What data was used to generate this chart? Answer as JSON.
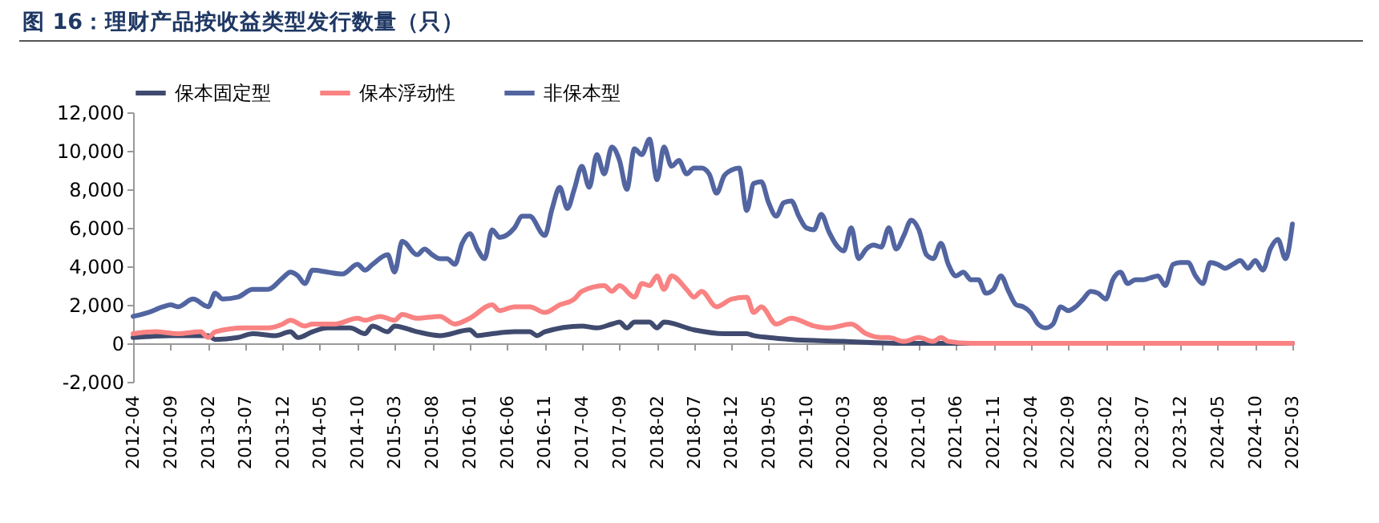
{
  "chart_data": {
    "type": "line",
    "title": "图 16：理财产品按收益类型发行数量（只）",
    "legend": "top",
    "line_style": "solid",
    "marker": "none",
    "xlim": [
      "2012-04",
      "2025-03"
    ],
    "xticks": [
      "2012-04",
      "2012-09",
      "2013-02",
      "2013-07",
      "2013-12",
      "2014-05",
      "2014-10",
      "2015-03",
      "2015-08",
      "2016-01",
      "2016-06",
      "2016-11",
      "2017-04",
      "2017-09",
      "2018-02",
      "2018-07",
      "2018-12",
      "2019-05",
      "2019-10",
      "2020-03",
      "2020-08",
      "2021-01",
      "2021-06",
      "2021-11",
      "2022-04",
      "2022-09",
      "2023-02",
      "2023-07",
      "2023-12",
      "2024-05",
      "2024-10",
      "2025-03"
    ],
    "ylim": [
      -2000,
      12000
    ],
    "yticks": [
      {
        "value": -2000,
        "label": "-2,000"
      },
      0,
      {
        "value": 2000,
        "label": "2,000"
      },
      {
        "value": 4000,
        "label": "4,000"
      },
      {
        "value": 6000,
        "label": "6,000"
      },
      {
        "value": 8000,
        "label": "8,000"
      },
      {
        "value": 10000,
        "label": "10,000"
      },
      {
        "value": 12000,
        "label": "12,000"
      }
    ],
    "series": [
      {
        "name": "保本固定型",
        "color": "#3f4a6e",
        "x": [
          "2012-04",
          "2012-09",
          "2013-02",
          "2013-03",
          "2013-06",
          "2013-08",
          "2013-11",
          "2014-01",
          "2014-02",
          "2014-04",
          "2014-06",
          "2014-09",
          "2014-11",
          "2014-12",
          "2015-02",
          "2015-03",
          "2015-06",
          "2015-09",
          "2016-01",
          "2016-02",
          "2016-04",
          "2016-07",
          "2016-09",
          "2016-10",
          "2016-11",
          "2017-04",
          "2017-06",
          "2017-08",
          "2017-09",
          "2017-10",
          "2017-11",
          "2018-01",
          "2018-02",
          "2018-03",
          "2018-07",
          "2018-11",
          "2019-02",
          "2019-03",
          "2019-05",
          "2019-08",
          "2020-03",
          "2020-10",
          "2021-05",
          "2025-03"
        ],
        "values": [
          300,
          400,
          400,
          200,
          300,
          500,
          400,
          600,
          300,
          600,
          800,
          800,
          500,
          900,
          600,
          900,
          600,
          400,
          700,
          400,
          500,
          600,
          600,
          400,
          600,
          900,
          800,
          1000,
          1100,
          800,
          1100,
          1100,
          800,
          1100,
          700,
          500,
          500,
          400,
          300,
          200,
          100,
          0,
          0,
          0
        ]
      },
      {
        "name": "保本浮动性",
        "color": "#f98282",
        "x": [
          "2012-04",
          "2012-07",
          "2012-10",
          "2013-01",
          "2013-02",
          "2013-03",
          "2013-07",
          "2013-10",
          "2013-12",
          "2014-01",
          "2014-03",
          "2014-04",
          "2014-07",
          "2014-10",
          "2014-11",
          "2015-01",
          "2015-03",
          "2015-04",
          "2015-06",
          "2015-09",
          "2015-11",
          "2016-01",
          "2016-04",
          "2016-05",
          "2016-07",
          "2016-09",
          "2016-11",
          "2017-01",
          "2017-03",
          "2017-04",
          "2017-07",
          "2017-08",
          "2017-09",
          "2017-11",
          "2017-12",
          "2018-01",
          "2018-02",
          "2018-03",
          "2018-04",
          "2018-06",
          "2018-07",
          "2018-08",
          "2018-10",
          "2018-12",
          "2019-02",
          "2019-03",
          "2019-04",
          "2019-06",
          "2019-08",
          "2019-11",
          "2020-01",
          "2020-04",
          "2020-06",
          "2020-08",
          "2020-09",
          "2020-11",
          "2021-01",
          "2021-03",
          "2021-04",
          "2021-05",
          "2021-08",
          "2025-03"
        ],
        "values": [
          500,
          600,
          500,
          600,
          300,
          600,
          800,
          800,
          1000,
          1200,
          900,
          1000,
          1000,
          1300,
          1200,
          1400,
          1200,
          1500,
          1300,
          1400,
          1000,
          1300,
          2000,
          1700,
          1900,
          1900,
          1600,
          2000,
          2300,
          2700,
          3000,
          2700,
          3000,
          2400,
          3100,
          3000,
          3500,
          2800,
          3500,
          2800,
          2400,
          2700,
          1900,
          2300,
          2400,
          1600,
          1900,
          1000,
          1300,
          900,
          800,
          1000,
          500,
          300,
          300,
          100,
          300,
          100,
          300,
          100,
          0,
          0
        ]
      },
      {
        "name": "非保本型",
        "color": "#5265a1",
        "x": [
          "2012-04",
          "2012-06",
          "2012-08",
          "2012-09",
          "2012-10",
          "2012-12",
          "2013-02",
          "2013-03",
          "2013-04",
          "2013-06",
          "2013-08",
          "2013-10",
          "2013-12",
          "2014-01",
          "2014-02",
          "2014-03",
          "2014-04",
          "2014-06",
          "2014-08",
          "2014-10",
          "2014-11",
          "2014-12",
          "2015-02",
          "2015-03",
          "2015-04",
          "2015-06",
          "2015-07",
          "2015-08",
          "2015-09",
          "2015-10",
          "2015-11",
          "2015-12",
          "2016-01",
          "2016-02",
          "2016-03",
          "2016-04",
          "2016-05",
          "2016-07",
          "2016-08",
          "2016-09",
          "2016-11",
          "2016-12",
          "2017-01",
          "2017-02",
          "2017-03",
          "2017-04",
          "2017-05",
          "2017-06",
          "2017-07",
          "2017-08",
          "2017-09",
          "2017-10",
          "2017-11",
          "2017-12",
          "2018-01",
          "2018-02",
          "2018-03",
          "2018-04",
          "2018-05",
          "2018-06",
          "2018-07",
          "2018-08",
          "2018-09",
          "2018-10",
          "2018-11",
          "2018-12",
          "2019-01",
          "2019-02",
          "2019-03",
          "2019-04",
          "2019-05",
          "2019-06",
          "2019-07",
          "2019-08",
          "2019-09",
          "2019-10",
          "2019-11",
          "2019-12",
          "2020-01",
          "2020-02",
          "2020-03",
          "2020-04",
          "2020-05",
          "2020-06",
          "2020-07",
          "2020-08",
          "2020-09",
          "2020-10",
          "2020-11",
          "2020-12",
          "2021-01",
          "2021-02",
          "2021-03",
          "2021-04",
          "2021-05",
          "2021-06",
          "2021-07",
          "2021-08",
          "2021-09",
          "2021-10",
          "2021-11",
          "2021-12",
          "2022-01",
          "2022-02",
          "2022-03",
          "2022-04",
          "2022-05",
          "2022-06",
          "2022-07",
          "2022-08",
          "2022-09",
          "2022-10",
          "2022-11",
          "2022-12",
          "2023-01",
          "2023-02",
          "2023-03",
          "2023-04",
          "2023-05",
          "2023-06",
          "2023-07",
          "2023-08",
          "2023-09",
          "2023-10",
          "2023-11",
          "2023-12",
          "2024-01",
          "2024-02",
          "2024-03",
          "2024-04",
          "2024-05",
          "2024-06",
          "2024-07",
          "2024-08",
          "2024-09",
          "2024-10",
          "2024-11",
          "2024-12",
          "2025-01",
          "2025-02",
          "2025-03"
        ],
        "values": [
          1400,
          1600,
          1900,
          2000,
          1900,
          2300,
          1900,
          2600,
          2300,
          2400,
          2800,
          2800,
          3400,
          3700,
          3500,
          3100,
          3800,
          3700,
          3600,
          4100,
          3800,
          4100,
          4600,
          3700,
          5300,
          4600,
          4900,
          4600,
          4400,
          4400,
          4100,
          5200,
          5700,
          4900,
          4400,
          5900,
          5500,
          6000,
          6600,
          6600,
          5600,
          7000,
          8100,
          7000,
          8000,
          9200,
          8100,
          9800,
          8800,
          10200,
          9500,
          8000,
          10100,
          9800,
          10600,
          8500,
          10200,
          9200,
          9500,
          8800,
          9100,
          9100,
          8800,
          7800,
          8700,
          9000,
          9100,
          6900,
          8300,
          8400,
          7300,
          6600,
          7300,
          7400,
          6600,
          6000,
          5900,
          6700,
          5800,
          5100,
          4800,
          6000,
          4400,
          4900,
          5100,
          5000,
          6000,
          4900,
          5600,
          6400,
          5900,
          4600,
          4400,
          5200,
          4100,
          3500,
          3700,
          3300,
          3300,
          2600,
          2800,
          3500,
          2700,
          2000,
          1900,
          1600,
          1000,
          800,
          1000,
          1900,
          1700,
          1900,
          2300,
          2700,
          2600,
          2300,
          3300,
          3700,
          3100,
          3300,
          3300,
          3400,
          3500,
          3000,
          4100,
          4200,
          4200,
          3500,
          3100,
          4200,
          4100,
          3900,
          4100,
          4300,
          3900,
          4300,
          3800,
          4900,
          5400,
          4400,
          6200
        ]
      }
    ]
  }
}
